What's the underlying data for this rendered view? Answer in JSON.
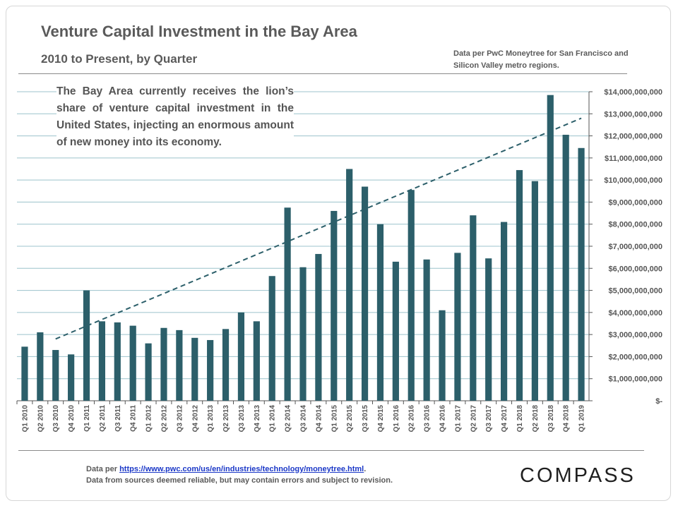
{
  "header": {
    "title": "Venture Capital Investment in the Bay Area",
    "subtitle": "2010 to Present, by Quarter",
    "source_note": "Data per PwC Moneytree for San Francisco and Silicon Valley metro regions."
  },
  "annotation": "The Bay Area currently receives the lion’s share of venture capital investment in the United States, injecting an enormous amount of new money into its economy.",
  "footer": {
    "prefix": "Data per ",
    "link": "https://www.pwc.com/us/en/industries/technology/moneytree.html",
    "suffix": ".",
    "disclaimer": "Data from sources deemed reliable, but may contain errors and subject to revision."
  },
  "logo": "COMPASS",
  "colors": {
    "bar": "#2c5f6a",
    "trend": "#2c5f6a",
    "grid": "#9cc3cc",
    "text": "#555555"
  },
  "chart_data": {
    "type": "bar",
    "title": "Venture Capital Investment in the Bay Area",
    "categories": [
      "Q1 2010",
      "Q2 2010",
      "Q3 2010",
      "Q4 2010",
      "Q1 2011",
      "Q2 2011",
      "Q3 2011",
      "Q4 2011",
      "Q1 2012",
      "Q2 2012",
      "Q3 2012",
      "Q4 2012",
      "Q1 2013",
      "Q2 2013",
      "Q3 2013",
      "Q4 2013",
      "Q1 2014",
      "Q2 2014",
      "Q3 2014",
      "Q4 2014",
      "Q1 2015",
      "Q2 2015",
      "Q3 2015",
      "Q4 2015",
      "Q1 2016",
      "Q2 2016",
      "Q3 2016",
      "Q4 2016",
      "Q1 2017",
      "Q2 2017",
      "Q3 2017",
      "Q4 2017",
      "Q1 2018",
      "Q2 2018",
      "Q3 2018",
      "Q4 2018",
      "Q1 2019"
    ],
    "values": [
      2450000000,
      3100000000,
      2300000000,
      2100000000,
      5000000000,
      3600000000,
      3550000000,
      3400000000,
      2600000000,
      3300000000,
      3200000000,
      2850000000,
      2750000000,
      3250000000,
      4000000000,
      3600000000,
      5650000000,
      8750000000,
      6050000000,
      6650000000,
      8600000000,
      10500000000,
      9700000000,
      8000000000,
      6300000000,
      9550000000,
      6400000000,
      4100000000,
      6700000000,
      8400000000,
      6450000000,
      8100000000,
      10450000000,
      9950000000,
      13850000000,
      12050000000,
      11450000000
    ],
    "trendline": {
      "type": "linear",
      "dashed": true,
      "start_category": "Q3 2010",
      "end_category": "Q1 2019",
      "start_value": 2800000000,
      "end_value": 12800000000
    },
    "ylim": [
      0,
      14000000000
    ],
    "yticks": [
      0,
      1000000000,
      2000000000,
      3000000000,
      4000000000,
      5000000000,
      6000000000,
      7000000000,
      8000000000,
      9000000000,
      10000000000,
      11000000000,
      12000000000,
      13000000000,
      14000000000
    ],
    "ytick_labels": [
      "$-",
      "$1,000,000,000",
      "$2,000,000,000",
      "$3,000,000,000",
      "$4,000,000,000",
      "$5,000,000,000",
      "$6,000,000,000",
      "$7,000,000,000",
      "$8,000,000,000",
      "$9,000,000,000",
      "$10,000,000,000",
      "$11,000,000,000",
      "$12,000,000,000",
      "$13,000,000,000",
      "$14,000,000,000"
    ],
    "yaxis_position": "right",
    "grid": true,
    "xlabel": "",
    "ylabel": ""
  }
}
